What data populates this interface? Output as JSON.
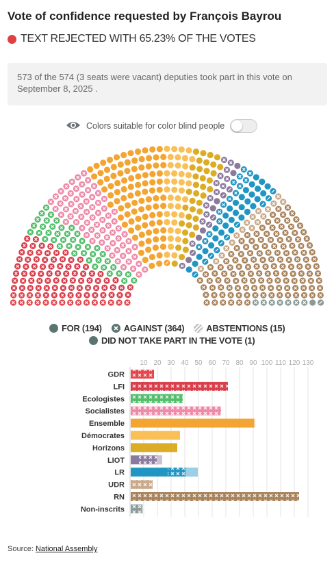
{
  "header": {
    "title": "Vote of confidence requested by François Bayrou",
    "result_text": "TEXT REJECTED WITH 65.23% OF THE VOTES",
    "result_color": "#e0403f"
  },
  "note": "573 of the 574 (3 seats were vacant) deputies took part in this vote on September 8, 2025 .",
  "colorblind_toggle": {
    "label": "Colors suitable for color blind people",
    "enabled": false
  },
  "legend": {
    "for": "FOR (194)",
    "against": "AGAINST (364)",
    "abstentions": "ABSTENTIONS (15)",
    "not_voting": "DID NOT TAKE PART IN THE VOTE (1)"
  },
  "colors": {
    "GDR": "#e4464c",
    "LFI": "#d93e4b",
    "Ecologistes": "#52be6a",
    "Socialistes": "#ee89a8",
    "Ensemble": "#f3a533",
    "Démocrates": "#f9c058",
    "Horizons": "#dbad26",
    "LIOT": "#8c7a9e",
    "LR": "#2196c3",
    "UDR": "#c9a98a",
    "RN": "#a8835c",
    "Non-inscrits": "#8b9c98",
    "for": "#5c7470",
    "vacant": "#ffffff"
  },
  "chart_data": {
    "type": "bar",
    "stacked": true,
    "categories": [
      "GDR",
      "LFI",
      "Ecologistes",
      "Socialistes",
      "Ensemble",
      "Démocrates",
      "Horizons",
      "LIOT",
      "LR",
      "UDR",
      "RN",
      "Non-inscrits"
    ],
    "series": [
      {
        "name": "FOR",
        "values": [
          0,
          0,
          0,
          0,
          90,
          36,
          34,
          6,
          27,
          0,
          0,
          1
        ]
      },
      {
        "name": "AGAINST",
        "values": [
          17,
          71,
          38,
          66,
          0,
          0,
          0,
          13,
          13,
          16,
          123,
          7
        ]
      },
      {
        "name": "ABSTENTIONS",
        "values": [
          0,
          0,
          0,
          0,
          1,
          0,
          0,
          4,
          9,
          0,
          0,
          1
        ]
      }
    ],
    "x_ticks": [
      10,
      20,
      30,
      40,
      50,
      60,
      70,
      80,
      90,
      100,
      110,
      120,
      130
    ],
    "xlim": [
      0,
      135
    ],
    "grid": true
  },
  "source": {
    "label": "Source:",
    "link": "National Assembly"
  }
}
